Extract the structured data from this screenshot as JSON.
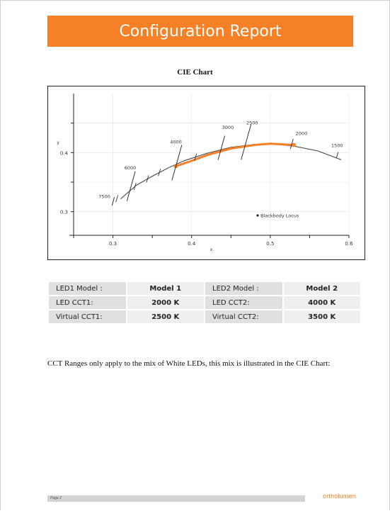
{
  "header": {
    "title": "Configuration Report"
  },
  "chart_data": {
    "type": "line",
    "title": "CIE Chart",
    "xlabel": "x",
    "ylabel": "y",
    "xlim": [
      0.25,
      0.6
    ],
    "ylim": [
      0.26,
      0.5
    ],
    "x_ticks": [
      "0.3",
      "0.4",
      "0.5",
      "0.6"
    ],
    "y_ticks": [
      "0.3",
      "0.4"
    ],
    "grid": true,
    "legend": {
      "label": "Blackbody Locus",
      "placement": "bottom-right"
    },
    "series": [
      {
        "name": "Blackbody Locus",
        "color": "#555555",
        "x": [
          0.31,
          0.33,
          0.35,
          0.37,
          0.39,
          0.42,
          0.45,
          0.48,
          0.5,
          0.53,
          0.56,
          0.59
        ],
        "y": [
          0.322,
          0.345,
          0.36,
          0.374,
          0.386,
          0.399,
          0.409,
          0.414,
          0.415,
          0.411,
          0.403,
          0.388
        ]
      },
      {
        "color": "#f58025",
        "x": [
          0.38,
          0.4,
          0.42,
          0.45,
          0.48,
          0.5,
          0.53
        ],
        "y": [
          0.377,
          0.386,
          0.396,
          0.407,
          0.413,
          0.415,
          0.413
        ]
      }
    ],
    "isotherms": [
      {
        "label": "7500",
        "x": 0.3,
        "y": 0.316
      },
      {
        "label": "6000",
        "x": 0.322,
        "y": 0.338
      },
      {
        "label": "4000",
        "x": 0.38,
        "y": 0.377
      },
      {
        "label": "3000",
        "x": 0.437,
        "y": 0.404
      },
      {
        "label": "2500",
        "x": 0.468,
        "y": 0.412
      },
      {
        "label": "2000",
        "x": 0.527,
        "y": 0.413
      },
      {
        "label": "1500",
        "x": 0.585,
        "y": 0.395
      }
    ],
    "minor_ticks_x": [
      0.305,
      0.328,
      0.344,
      0.359,
      0.405
    ]
  },
  "table": {
    "rows": [
      {
        "l1": "LED1 Model :",
        "v1": "Model 1",
        "l2": "LED2 Model :",
        "v2": "Model 2"
      },
      {
        "l1": "LED CCT1:",
        "v1": "2000 K",
        "l2": "LED CCT2:",
        "v2": "4000 K"
      },
      {
        "l1": "Virtual CCT1:",
        "v1": "2500 K",
        "l2": "Virtual CCT2:",
        "v2": "3500 K"
      }
    ]
  },
  "note": "CCT Ranges only apply to the mix of White LEDs, this mix is illustrated in the CIE Chart:",
  "footer": {
    "page_label": "Page 2",
    "logo": "ortholumen"
  },
  "colors": {
    "accent": "#f58025"
  }
}
